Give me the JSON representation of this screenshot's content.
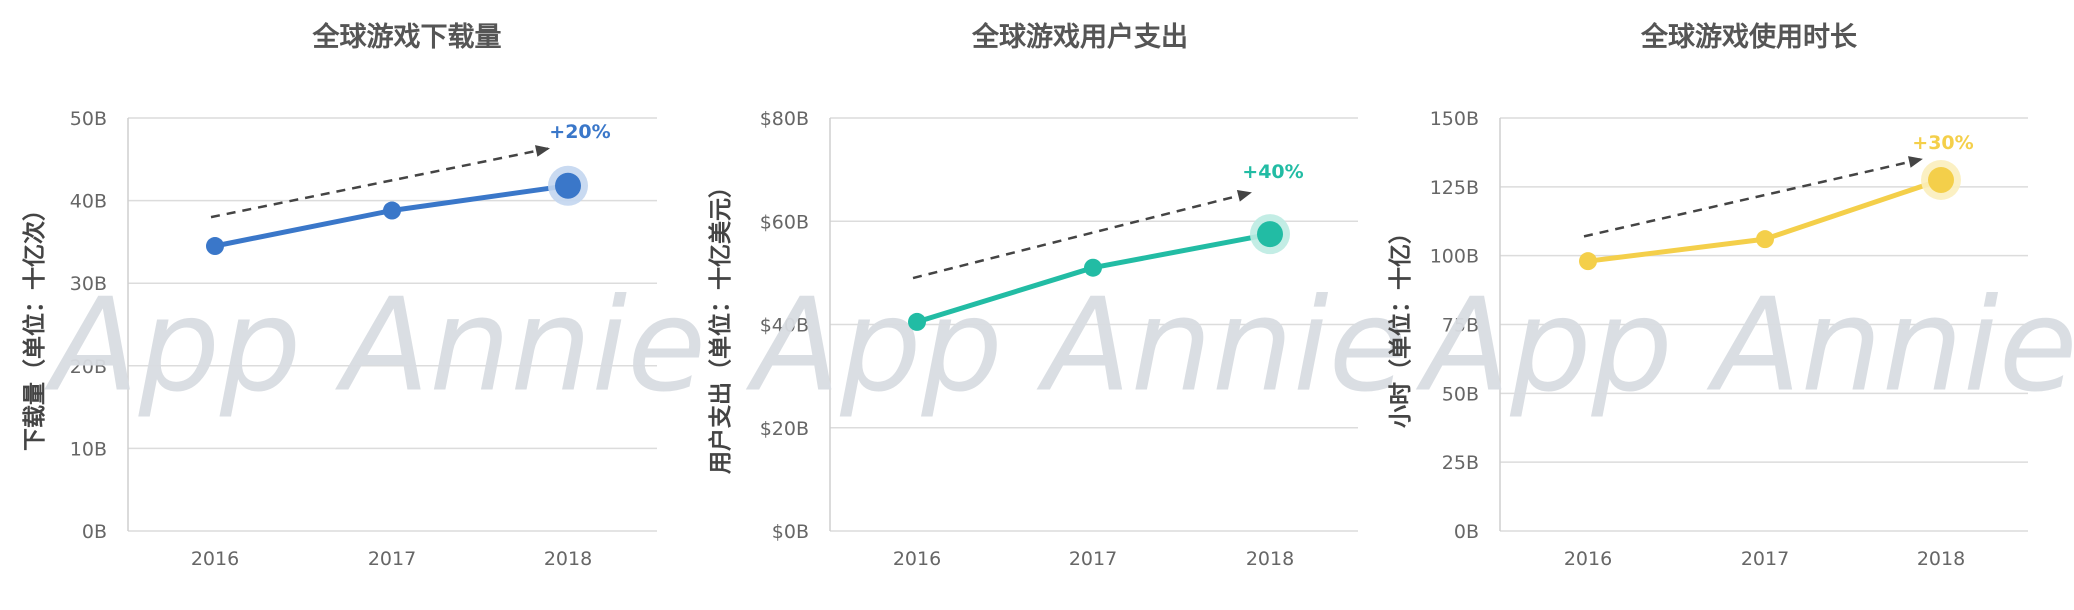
{
  "watermark": "App Annie",
  "chart_data": [
    {
      "type": "line",
      "title": "全球游戏下载量",
      "ylabel": "下载量（单位：十亿次）",
      "xlabel": "",
      "x": [
        "2016",
        "2017",
        "2018"
      ],
      "series": [
        {
          "values": [
            34.5,
            38.8,
            41.8
          ]
        }
      ],
      "ylim": [
        0,
        50
      ],
      "yticks": [
        0,
        10,
        20,
        30,
        40,
        50
      ],
      "ytick_labels": [
        "0B",
        "10B",
        "20B",
        "30B",
        "40B",
        "50B"
      ],
      "annotation": "+20%",
      "color": "#3a77c9",
      "halo_color": "#c3d6f0",
      "trend_y": [
        38.0,
        46.3
      ],
      "grid": true
    },
    {
      "type": "line",
      "title": "全球游戏用户支出",
      "ylabel": "用户支出（单位：十亿美元）",
      "xlabel": "",
      "x": [
        "2016",
        "2017",
        "2018"
      ],
      "series": [
        {
          "values": [
            40.5,
            51,
            57.5
          ]
        }
      ],
      "ylim": [
        0,
        80
      ],
      "yticks": [
        0,
        20,
        40,
        60,
        80
      ],
      "ytick_labels": [
        "$0B",
        "$20B",
        "$40B",
        "$60B",
        "$80B"
      ],
      "annotation": "+40%",
      "color": "#22bca4",
      "halo_color": "#bdebe2",
      "trend_y": [
        49.0,
        65.5
      ],
      "grid": true
    },
    {
      "type": "line",
      "title": "全球游戏使用时长",
      "ylabel": "小时（单位：十亿）",
      "xlabel": "",
      "x": [
        "2016",
        "2017",
        "2018"
      ],
      "series": [
        {
          "values": [
            98,
            106,
            127.5
          ]
        }
      ],
      "ylim": [
        0,
        150
      ],
      "yticks": [
        0,
        25,
        50,
        75,
        100,
        125,
        150
      ],
      "ytick_labels": [
        "0B",
        "25B",
        "50B",
        "75B",
        "100B",
        "125B",
        "150B"
      ],
      "annotation": "+30%",
      "color": "#f4cf4a",
      "halo_color": "#fbeebd",
      "trend_y": [
        107,
        135
      ],
      "grid": true
    }
  ]
}
